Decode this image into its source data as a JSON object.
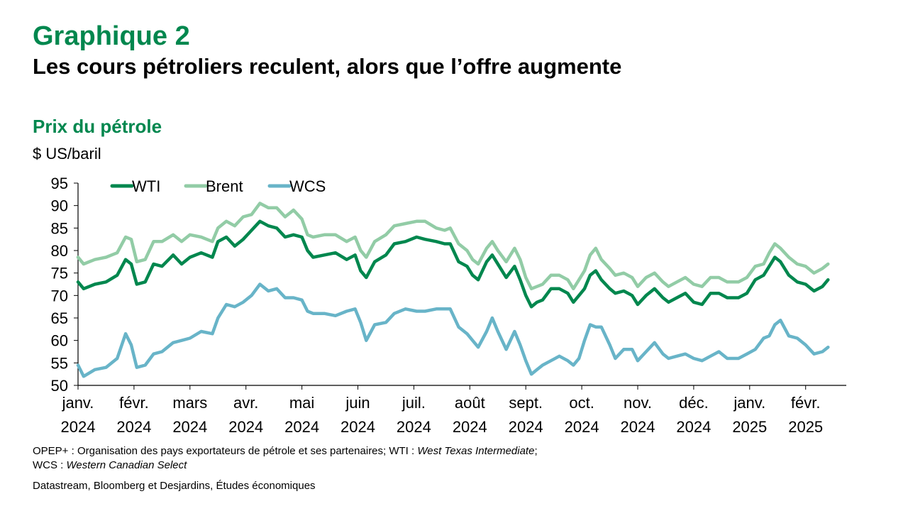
{
  "figure": {
    "number": "Graphique 2",
    "title": "Les cours pétroliers reculent, alors que l’offre augmente",
    "subtitle": "Prix du pétrole",
    "unit": "$ US/baril"
  },
  "notes": {
    "line1_plain": "OPEP+ : Organisation des pays exportateurs de pétrole et ses partenaires; WTI : ",
    "line1_italic": "West Texas Intermediate",
    "line1_end": ";",
    "line2_plain": "WCS : ",
    "line2_italic": "Western Canadian Select"
  },
  "source": "Datastream, Bloomberg et Desjardins, Études économiques",
  "chart_data": {
    "type": "line",
    "ylim": [
      50,
      95
    ],
    "yticks": [
      50,
      55,
      60,
      65,
      70,
      75,
      80,
      85,
      90,
      95
    ],
    "xlim": [
      0,
      13.9
    ],
    "xticks": [
      {
        "pos": 0,
        "label1": "janv.",
        "label2": "2024"
      },
      {
        "pos": 1,
        "label1": "févr.",
        "label2": "2024"
      },
      {
        "pos": 2,
        "label1": "mars",
        "label2": "2024"
      },
      {
        "pos": 3,
        "label1": "avr.",
        "label2": "2024"
      },
      {
        "pos": 4,
        "label1": "mai",
        "label2": "2024"
      },
      {
        "pos": 5,
        "label1": "juin",
        "label2": "2024"
      },
      {
        "pos": 6,
        "label1": "juil.",
        "label2": "2024"
      },
      {
        "pos": 7,
        "label1": "août",
        "label2": "2024"
      },
      {
        "pos": 8,
        "label1": "sept.",
        "label2": "2024"
      },
      {
        "pos": 9,
        "label1": "oct.",
        "label2": "2024"
      },
      {
        "pos": 10,
        "label1": "nov.",
        "label2": "2024"
      },
      {
        "pos": 11,
        "label1": "déc.",
        "label2": "2024"
      },
      {
        "pos": 12,
        "label1": "janv.",
        "label2": "2025"
      },
      {
        "pos": 13,
        "label1": "févr.",
        "label2": "2025"
      }
    ],
    "legend_position": "top-left",
    "grid": false,
    "series": [
      {
        "name": "WTI",
        "color": "#00874e",
        "points": [
          [
            0,
            73
          ],
          [
            0.1,
            71.5
          ],
          [
            0.3,
            72.5
          ],
          [
            0.5,
            73
          ],
          [
            0.7,
            74.5
          ],
          [
            0.85,
            78
          ],
          [
            0.95,
            77
          ],
          [
            1.05,
            72.5
          ],
          [
            1.2,
            73
          ],
          [
            1.35,
            77
          ],
          [
            1.5,
            76.5
          ],
          [
            1.7,
            79
          ],
          [
            1.85,
            77
          ],
          [
            2.0,
            78.5
          ],
          [
            2.2,
            79.5
          ],
          [
            2.4,
            78.5
          ],
          [
            2.5,
            82
          ],
          [
            2.65,
            83
          ],
          [
            2.8,
            81
          ],
          [
            2.95,
            82.5
          ],
          [
            3.1,
            84.5
          ],
          [
            3.25,
            86.5
          ],
          [
            3.4,
            85.5
          ],
          [
            3.55,
            85
          ],
          [
            3.7,
            83
          ],
          [
            3.85,
            83.5
          ],
          [
            4.0,
            83
          ],
          [
            4.1,
            80
          ],
          [
            4.2,
            78.5
          ],
          [
            4.4,
            79
          ],
          [
            4.6,
            79.5
          ],
          [
            4.8,
            78
          ],
          [
            4.95,
            79
          ],
          [
            5.05,
            75.5
          ],
          [
            5.15,
            74
          ],
          [
            5.3,
            77.5
          ],
          [
            5.5,
            79
          ],
          [
            5.65,
            81.5
          ],
          [
            5.85,
            82
          ],
          [
            6.05,
            83
          ],
          [
            6.2,
            82.5
          ],
          [
            6.4,
            82
          ],
          [
            6.55,
            81.5
          ],
          [
            6.65,
            81.5
          ],
          [
            6.8,
            77.5
          ],
          [
            6.95,
            76.5
          ],
          [
            7.05,
            74.5
          ],
          [
            7.15,
            73.5
          ],
          [
            7.3,
            77.5
          ],
          [
            7.4,
            79
          ],
          [
            7.5,
            77
          ],
          [
            7.65,
            74
          ],
          [
            7.8,
            76.5
          ],
          [
            7.9,
            73.5
          ],
          [
            8.0,
            70
          ],
          [
            8.1,
            67.5
          ],
          [
            8.2,
            68.5
          ],
          [
            8.3,
            69
          ],
          [
            8.45,
            71.5
          ],
          [
            8.6,
            71.5
          ],
          [
            8.75,
            70.5
          ],
          [
            8.85,
            68.5
          ],
          [
            8.95,
            70
          ],
          [
            9.05,
            71.5
          ],
          [
            9.15,
            74.5
          ],
          [
            9.25,
            75.5
          ],
          [
            9.35,
            73.5
          ],
          [
            9.5,
            71.5
          ],
          [
            9.6,
            70.5
          ],
          [
            9.75,
            71
          ],
          [
            9.9,
            70
          ],
          [
            10.0,
            68
          ],
          [
            10.15,
            70
          ],
          [
            10.3,
            71.5
          ],
          [
            10.45,
            69.5
          ],
          [
            10.55,
            68.5
          ],
          [
            10.7,
            69.5
          ],
          [
            10.85,
            70.5
          ],
          [
            11.0,
            68.5
          ],
          [
            11.15,
            68
          ],
          [
            11.3,
            70.5
          ],
          [
            11.45,
            70.5
          ],
          [
            11.6,
            69.5
          ],
          [
            11.8,
            69.5
          ],
          [
            11.95,
            70.5
          ],
          [
            12.1,
            73.5
          ],
          [
            12.25,
            74.5
          ],
          [
            12.35,
            76.5
          ],
          [
            12.45,
            78.5
          ],
          [
            12.55,
            77.5
          ],
          [
            12.7,
            74.5
          ],
          [
            12.85,
            73
          ],
          [
            13.0,
            72.5
          ],
          [
            13.15,
            71
          ],
          [
            13.3,
            72
          ],
          [
            13.4,
            73.5
          ]
        ]
      },
      {
        "name": "Brent",
        "color": "#92cca6",
        "points": [
          [
            0,
            78.5
          ],
          [
            0.1,
            77
          ],
          [
            0.3,
            78
          ],
          [
            0.5,
            78.5
          ],
          [
            0.7,
            79.5
          ],
          [
            0.85,
            83
          ],
          [
            0.95,
            82.5
          ],
          [
            1.05,
            77.5
          ],
          [
            1.2,
            78
          ],
          [
            1.35,
            82
          ],
          [
            1.5,
            82
          ],
          [
            1.7,
            83.5
          ],
          [
            1.85,
            82
          ],
          [
            2.0,
            83.5
          ],
          [
            2.2,
            83
          ],
          [
            2.4,
            82
          ],
          [
            2.5,
            85
          ],
          [
            2.65,
            86.5
          ],
          [
            2.8,
            85.5
          ],
          [
            2.95,
            87.5
          ],
          [
            3.1,
            88
          ],
          [
            3.25,
            90.5
          ],
          [
            3.4,
            89.5
          ],
          [
            3.55,
            89.5
          ],
          [
            3.7,
            87.5
          ],
          [
            3.85,
            89
          ],
          [
            4.0,
            87
          ],
          [
            4.1,
            83.5
          ],
          [
            4.2,
            83
          ],
          [
            4.4,
            83.5
          ],
          [
            4.6,
            83.5
          ],
          [
            4.8,
            82
          ],
          [
            4.95,
            83
          ],
          [
            5.05,
            80
          ],
          [
            5.15,
            78.5
          ],
          [
            5.3,
            82
          ],
          [
            5.5,
            83.5
          ],
          [
            5.65,
            85.5
          ],
          [
            5.85,
            86
          ],
          [
            6.05,
            86.5
          ],
          [
            6.2,
            86.5
          ],
          [
            6.4,
            85
          ],
          [
            6.55,
            84.5
          ],
          [
            6.65,
            85
          ],
          [
            6.8,
            81.5
          ],
          [
            6.95,
            80
          ],
          [
            7.05,
            78
          ],
          [
            7.15,
            77
          ],
          [
            7.3,
            80.5
          ],
          [
            7.4,
            82
          ],
          [
            7.5,
            80
          ],
          [
            7.65,
            77.5
          ],
          [
            7.8,
            80.5
          ],
          [
            7.9,
            78
          ],
          [
            8.0,
            74
          ],
          [
            8.1,
            71.5
          ],
          [
            8.2,
            72
          ],
          [
            8.3,
            72.5
          ],
          [
            8.45,
            74.5
          ],
          [
            8.6,
            74.5
          ],
          [
            8.75,
            73.5
          ],
          [
            8.85,
            71.5
          ],
          [
            8.95,
            73.5
          ],
          [
            9.05,
            75.5
          ],
          [
            9.15,
            79
          ],
          [
            9.25,
            80.5
          ],
          [
            9.35,
            78
          ],
          [
            9.5,
            76
          ],
          [
            9.6,
            74.5
          ],
          [
            9.75,
            75
          ],
          [
            9.9,
            74
          ],
          [
            10.0,
            72
          ],
          [
            10.15,
            74
          ],
          [
            10.3,
            75
          ],
          [
            10.45,
            73
          ],
          [
            10.55,
            72
          ],
          [
            10.7,
            73
          ],
          [
            10.85,
            74
          ],
          [
            11.0,
            72.5
          ],
          [
            11.15,
            72
          ],
          [
            11.3,
            74
          ],
          [
            11.45,
            74
          ],
          [
            11.6,
            73
          ],
          [
            11.8,
            73
          ],
          [
            11.95,
            74
          ],
          [
            12.1,
            76.5
          ],
          [
            12.25,
            77
          ],
          [
            12.35,
            79.5
          ],
          [
            12.45,
            81.5
          ],
          [
            12.55,
            80.5
          ],
          [
            12.7,
            78.5
          ],
          [
            12.85,
            77
          ],
          [
            13.0,
            76.5
          ],
          [
            13.15,
            75
          ],
          [
            13.3,
            76
          ],
          [
            13.4,
            77
          ]
        ]
      },
      {
        "name": "WCS",
        "color": "#68b4c8",
        "points": [
          [
            0,
            54.5
          ],
          [
            0.1,
            52
          ],
          [
            0.3,
            53.5
          ],
          [
            0.5,
            54
          ],
          [
            0.7,
            56
          ],
          [
            0.85,
            61.5
          ],
          [
            0.95,
            59
          ],
          [
            1.05,
            54
          ],
          [
            1.2,
            54.5
          ],
          [
            1.35,
            57
          ],
          [
            1.5,
            57.5
          ],
          [
            1.7,
            59.5
          ],
          [
            1.85,
            60
          ],
          [
            2.0,
            60.5
          ],
          [
            2.2,
            62
          ],
          [
            2.4,
            61.5
          ],
          [
            2.5,
            65
          ],
          [
            2.65,
            68
          ],
          [
            2.8,
            67.5
          ],
          [
            2.95,
            68.5
          ],
          [
            3.1,
            70
          ],
          [
            3.25,
            72.5
          ],
          [
            3.4,
            71
          ],
          [
            3.55,
            71.5
          ],
          [
            3.7,
            69.5
          ],
          [
            3.85,
            69.5
          ],
          [
            4.0,
            69
          ],
          [
            4.1,
            66.5
          ],
          [
            4.2,
            66
          ],
          [
            4.4,
            66
          ],
          [
            4.6,
            65.5
          ],
          [
            4.8,
            66.5
          ],
          [
            4.95,
            67
          ],
          [
            5.05,
            64
          ],
          [
            5.15,
            60
          ],
          [
            5.3,
            63.5
          ],
          [
            5.5,
            64
          ],
          [
            5.65,
            66
          ],
          [
            5.85,
            67
          ],
          [
            6.05,
            66.5
          ],
          [
            6.2,
            66.5
          ],
          [
            6.4,
            67
          ],
          [
            6.55,
            67
          ],
          [
            6.65,
            67
          ],
          [
            6.8,
            63
          ],
          [
            6.95,
            61.5
          ],
          [
            7.05,
            60
          ],
          [
            7.15,
            58.5
          ],
          [
            7.3,
            62
          ],
          [
            7.4,
            65
          ],
          [
            7.5,
            62
          ],
          [
            7.65,
            58
          ],
          [
            7.8,
            62
          ],
          [
            7.9,
            59
          ],
          [
            8.0,
            55.5
          ],
          [
            8.1,
            52.5
          ],
          [
            8.2,
            53.5
          ],
          [
            8.3,
            54.5
          ],
          [
            8.45,
            55.5
          ],
          [
            8.6,
            56.5
          ],
          [
            8.75,
            55.5
          ],
          [
            8.85,
            54.5
          ],
          [
            8.95,
            56
          ],
          [
            9.05,
            60
          ],
          [
            9.15,
            63.5
          ],
          [
            9.25,
            63
          ],
          [
            9.35,
            63
          ],
          [
            9.5,
            59
          ],
          [
            9.6,
            56
          ],
          [
            9.75,
            58
          ],
          [
            9.9,
            58
          ],
          [
            10.0,
            55.5
          ],
          [
            10.15,
            57.5
          ],
          [
            10.3,
            59.5
          ],
          [
            10.45,
            57
          ],
          [
            10.55,
            56
          ],
          [
            10.7,
            56.5
          ],
          [
            10.85,
            57
          ],
          [
            11.0,
            56
          ],
          [
            11.15,
            55.5
          ],
          [
            11.3,
            56.5
          ],
          [
            11.45,
            57.5
          ],
          [
            11.6,
            56
          ],
          [
            11.8,
            56
          ],
          [
            11.95,
            57
          ],
          [
            12.1,
            58
          ],
          [
            12.25,
            60.5
          ],
          [
            12.35,
            61
          ],
          [
            12.45,
            63.5
          ],
          [
            12.55,
            64.5
          ],
          [
            12.7,
            61
          ],
          [
            12.85,
            60.5
          ],
          [
            13.0,
            59
          ],
          [
            13.15,
            57
          ],
          [
            13.3,
            57.5
          ],
          [
            13.4,
            58.5
          ]
        ]
      }
    ]
  }
}
